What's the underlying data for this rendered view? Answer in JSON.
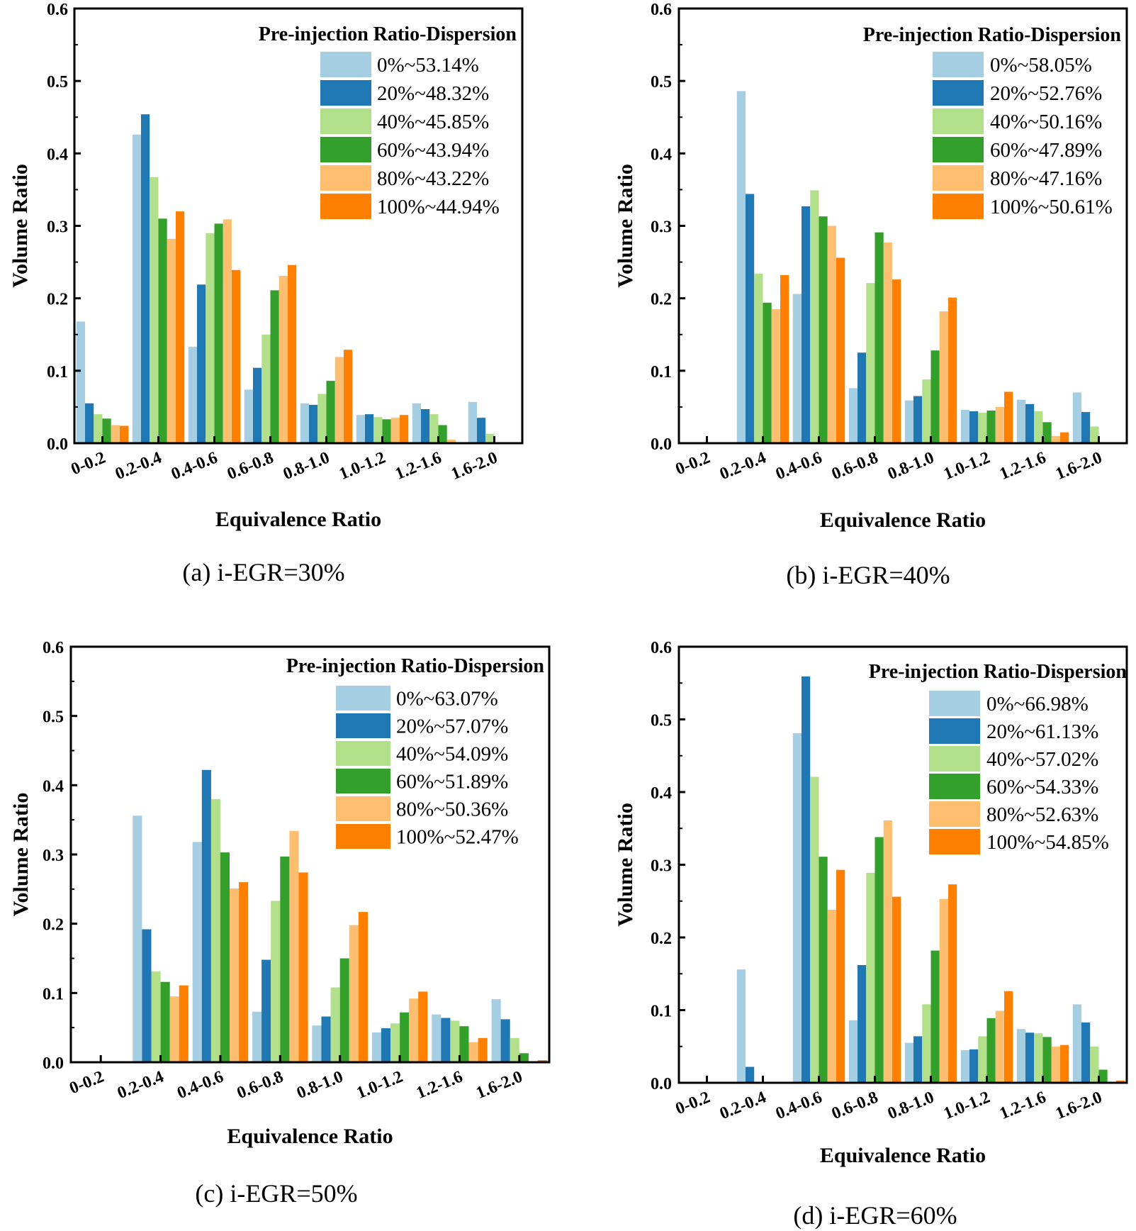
{
  "series_colors": [
    "#a6cee3",
    "#1f78b4",
    "#b2df8a",
    "#33a02c",
    "#fdbf6f",
    "#ff7f00"
  ],
  "chart_data": [
    {
      "type": "bar",
      "caption": "(a) i-EGR=30%",
      "xlabel": "Equivalence Ratio",
      "ylabel": "Volume Ratio",
      "ylim": [
        0,
        0.6
      ],
      "yticks": [
        "0.0",
        "0.1",
        "0.2",
        "0.3",
        "0.4",
        "0.5",
        "0.6"
      ],
      "categories": [
        "0-0.2",
        "0.2-0.4",
        "0.4-0.6",
        "0.6-0.8",
        "0.8-1.0",
        "1.0-1.2",
        "1.2-1.6",
        "1.6-2.0"
      ],
      "legend_title": "Pre-injection Ratio-Dispersion",
      "series": [
        {
          "name": "0%~53.14%",
          "values": [
            0.168,
            0.426,
            0.133,
            0.074,
            0.055,
            0.039,
            0.055,
            0.057
          ]
        },
        {
          "name": "20%~48.32%",
          "values": [
            0.055,
            0.454,
            0.219,
            0.104,
            0.053,
            0.04,
            0.047,
            0.035
          ]
        },
        {
          "name": "40%~45.85%",
          "values": [
            0.04,
            0.367,
            0.29,
            0.15,
            0.068,
            0.036,
            0.04,
            0.013
          ]
        },
        {
          "name": "60%~43.94%",
          "values": [
            0.034,
            0.31,
            0.303,
            0.211,
            0.086,
            0.033,
            0.025,
            0.0
          ]
        },
        {
          "name": "80%~43.22%",
          "values": [
            0.025,
            0.282,
            0.309,
            0.231,
            0.119,
            0.035,
            0.005,
            0.0
          ]
        },
        {
          "name": "100%~44.94%",
          "values": [
            0.024,
            0.32,
            0.239,
            0.246,
            0.129,
            0.039,
            0.0,
            0.0
          ]
        }
      ]
    },
    {
      "type": "bar",
      "caption": "(b) i-EGR=40%",
      "xlabel": "Equivalence Ratio",
      "ylabel": "Volume Ratio",
      "ylim": [
        0,
        0.6
      ],
      "yticks": [
        "0.0",
        "0.1",
        "0.2",
        "0.3",
        "0.4",
        "0.5",
        "0.6"
      ],
      "categories": [
        "0-0.2",
        "0.2-0.4",
        "0.4-0.6",
        "0.6-0.8",
        "0.8-1.0",
        "1.0-1.2",
        "1.2-1.6",
        "1.6-2.0"
      ],
      "legend_title": "Pre-injection Ratio-Dispersion",
      "series": [
        {
          "name": "0%~58.05%",
          "values": [
            0.0,
            0.486,
            0.206,
            0.076,
            0.059,
            0.046,
            0.06,
            0.07
          ]
        },
        {
          "name": "20%~52.76%",
          "values": [
            0.0,
            0.344,
            0.327,
            0.125,
            0.065,
            0.044,
            0.054,
            0.043
          ]
        },
        {
          "name": "40%~50.16%",
          "values": [
            0.0,
            0.234,
            0.349,
            0.221,
            0.088,
            0.042,
            0.044,
            0.023
          ]
        },
        {
          "name": "60%~47.89%",
          "values": [
            0.0,
            0.194,
            0.313,
            0.291,
            0.128,
            0.045,
            0.029,
            0.0
          ]
        },
        {
          "name": "80%~47.16%",
          "values": [
            0.0,
            0.185,
            0.3,
            0.277,
            0.182,
            0.05,
            0.01,
            0.0
          ]
        },
        {
          "name": "100%~50.61%",
          "values": [
            0.0,
            0.232,
            0.256,
            0.226,
            0.201,
            0.071,
            0.015,
            0.0
          ]
        }
      ]
    },
    {
      "type": "bar",
      "caption": "(c) i-EGR=50%",
      "xlabel": "Equivalence Ratio",
      "ylabel": "Volume Ratio",
      "ylim": [
        0,
        0.6
      ],
      "yticks": [
        "0.0",
        "0.1",
        "0.2",
        "0.3",
        "0.4",
        "0.5",
        "0.6"
      ],
      "categories": [
        "0-0.2",
        "0.2-0.4",
        "0.4-0.6",
        "0.6-0.8",
        "0.8-1.0",
        "1.0-1.2",
        "1.2-1.6",
        "1.6-2.0"
      ],
      "legend_title": "Pre-injection Ratio-Dispersion",
      "series": [
        {
          "name": "0%~63.07%",
          "values": [
            0.0,
            0.356,
            0.318,
            0.073,
            0.053,
            0.043,
            0.069,
            0.091
          ]
        },
        {
          "name": "20%~57.07%",
          "values": [
            0.0,
            0.192,
            0.422,
            0.148,
            0.066,
            0.049,
            0.064,
            0.062
          ]
        },
        {
          "name": "40%~54.09%",
          "values": [
            0.0,
            0.131,
            0.38,
            0.233,
            0.108,
            0.056,
            0.06,
            0.035
          ]
        },
        {
          "name": "60%~51.89%",
          "values": [
            0.0,
            0.116,
            0.303,
            0.297,
            0.15,
            0.072,
            0.052,
            0.013
          ]
        },
        {
          "name": "80%~50.36%",
          "values": [
            0.0,
            0.095,
            0.251,
            0.334,
            0.198,
            0.092,
            0.029,
            0.0
          ]
        },
        {
          "name": "100%~52.47%",
          "values": [
            0.0,
            0.111,
            0.26,
            0.274,
            0.217,
            0.102,
            0.035,
            0.003
          ]
        }
      ]
    },
    {
      "type": "bar",
      "caption": "(d) i-EGR=60%",
      "xlabel": "Equivalence Ratio",
      "ylabel": "Volume Ratio",
      "ylim": [
        0,
        0.6
      ],
      "yticks": [
        "0.0",
        "0.1",
        "0.2",
        "0.3",
        "0.4",
        "0.5",
        "0.6"
      ],
      "categories": [
        "0-0.2",
        "0.2-0.4",
        "0.4-0.6",
        "0.6-0.8",
        "0.8-1.0",
        "1.0-1.2",
        "1.2-1.6",
        "1.6-2.0"
      ],
      "legend_title": "Pre-injection Ratio-Dispersion",
      "series": [
        {
          "name": "0%~66.98%",
          "values": [
            0.0,
            0.156,
            0.481,
            0.086,
            0.055,
            0.045,
            0.074,
            0.108
          ]
        },
        {
          "name": "20%~61.13%",
          "values": [
            0.0,
            0.022,
            0.559,
            0.162,
            0.064,
            0.046,
            0.069,
            0.083
          ]
        },
        {
          "name": "40%~57.02%",
          "values": [
            0.0,
            0.0,
            0.421,
            0.289,
            0.108,
            0.064,
            0.068,
            0.05
          ]
        },
        {
          "name": "60%~54.33%",
          "values": [
            0.0,
            0.0,
            0.311,
            0.338,
            0.182,
            0.089,
            0.063,
            0.018
          ]
        },
        {
          "name": "80%~52.63%",
          "values": [
            0.0,
            0.0,
            0.238,
            0.361,
            0.253,
            0.099,
            0.05,
            0.0
          ]
        },
        {
          "name": "100%~54.85%",
          "values": [
            0.0,
            0.0,
            0.293,
            0.256,
            0.273,
            0.126,
            0.052,
            0.003
          ]
        }
      ]
    }
  ]
}
